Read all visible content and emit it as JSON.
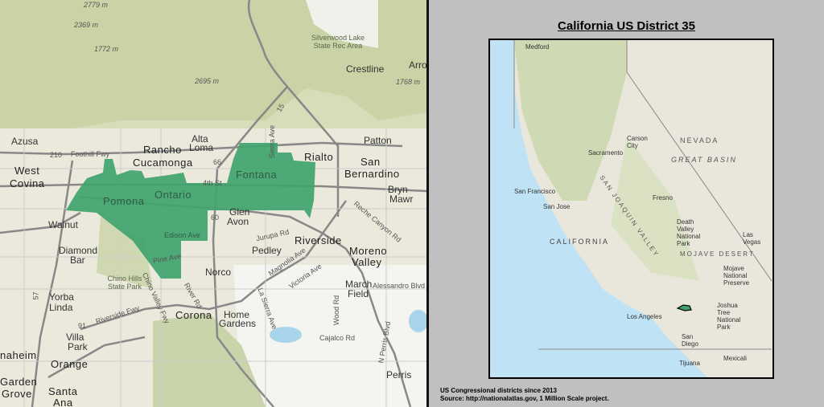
{
  "title": "California US District 35",
  "footer": {
    "line1": "US Congressional districts since 2013",
    "line2": "Source: http://nationalatlas.gov, 1 Million Scale project."
  },
  "colors": {
    "district": "#3fa36b",
    "ocean": "#bfe3f4",
    "panel": "#c0c0c0",
    "terrain": "#dde3c8"
  },
  "detail_map": {
    "elevations": [
      "2779 m",
      "2369 m",
      "1772 m",
      "2695 m",
      "1768 m"
    ],
    "places": [
      "Azusa",
      "Rancho",
      "Cucamonga",
      "Alta",
      "Loma",
      "West",
      "Covina",
      "Pomona",
      "Ontario",
      "Fontana",
      "Rialto",
      "Patton",
      "San",
      "Bernardino",
      "Bryn",
      "Mawr",
      "Walnut",
      "Glen",
      "Avon",
      "Riverside",
      "Diamond",
      "Bar",
      "Pedley",
      "Moreno",
      "Valley",
      "Norco",
      "March",
      "Field",
      "Yorba",
      "Linda",
      "Corona",
      "Home",
      "Gardens",
      "Villa",
      "Park",
      "Orange",
      "naheim",
      "Garden",
      "Grove",
      "Santa",
      "Ana",
      "Perris",
      "Crestline",
      "Arro"
    ],
    "parks": [
      "Silverwood Lake State Rec Area",
      "Chino Hills State Park"
    ],
    "roads": [
      "Foothill Fwy",
      "210",
      "66",
      "15",
      "4th St",
      "60",
      "Edison Ave",
      "Jurupa Rd",
      "Reche Canyon Rd",
      "Riverside Fwy",
      "91",
      "57",
      "River Rd",
      "La Sierra Ave",
      "Magnolia Ave",
      "Victoria Ave",
      "Wood Rd",
      "Cajalco Rd",
      "N Perris Blvd",
      "Alessandro Blvd",
      "Sierra Ave",
      "Chino Valley Fwy",
      "Pine Ave"
    ]
  },
  "inset_map": {
    "places": [
      "Medford",
      "Carson City",
      "Sacramento",
      "San Francisco",
      "San Jose",
      "Fresno",
      "Death Valley National Park",
      "Las Vegas",
      "Mojave National Preserve",
      "Joshua Tree National Park",
      "Los Angeles",
      "San Diego",
      "Tijuana",
      "Mexicali"
    ],
    "regions": [
      "NEVADA",
      "GREAT BASIN",
      "CALIFORNIA",
      "SAN JOAQUIN VALLEY",
      "MOJAVE DESERT"
    ]
  }
}
